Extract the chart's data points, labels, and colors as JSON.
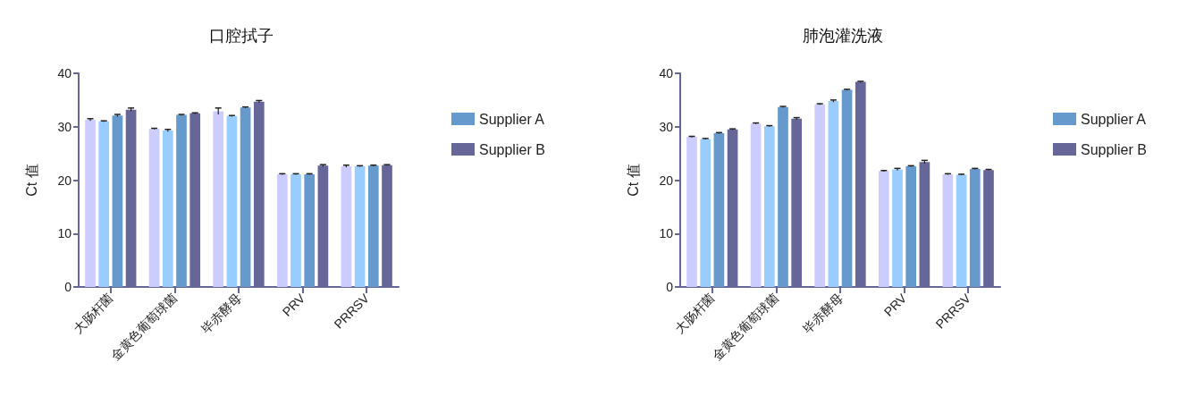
{
  "chart_data": [
    {
      "type": "bar",
      "title": "口腔拭子",
      "ylabel": "Ct 值",
      "categories": [
        "大肠杆菌",
        "金黄色葡萄球菌",
        "毕赤酵母",
        "PRV",
        "PRRSV"
      ],
      "ylim": [
        0,
        40
      ],
      "yticks": [
        0,
        10,
        20,
        30,
        40
      ],
      "grid": false,
      "legend": "right",
      "series": [
        {
          "color": "#ccccff",
          "values": [
            31.3,
            29.6,
            32.9,
            21.1,
            22.6
          ],
          "errors": [
            0.2,
            0.1,
            0.6,
            0.1,
            0.2
          ]
        },
        {
          "color": "#99ccff",
          "values": [
            31.0,
            29.3,
            32.0,
            21.1,
            22.6
          ],
          "errors": [
            0.1,
            0.2,
            0.1,
            0.1,
            0.1
          ]
        },
        {
          "name": "Supplier A",
          "color": "#6699cc",
          "values": [
            32.1,
            32.2,
            33.6,
            21.1,
            22.7
          ],
          "errors": [
            0.2,
            0.1,
            0.1,
            0.1,
            0.1
          ]
        },
        {
          "name": "Supplier B",
          "color": "#666699",
          "values": [
            33.2,
            32.5,
            34.7,
            22.7,
            22.8
          ],
          "errors": [
            0.3,
            0.1,
            0.2,
            0.2,
            0.1
          ]
        }
      ]
    },
    {
      "type": "bar",
      "title": "肺泡灌洗液",
      "ylabel": "Ct 值",
      "categories": [
        "大肠杆菌",
        "金黄色葡萄球菌",
        "毕赤酵母",
        "PRV",
        "PRRSV"
      ],
      "ylim": [
        0,
        40
      ],
      "yticks": [
        0,
        10,
        20,
        30,
        40
      ],
      "grid": false,
      "legend": "right",
      "series": [
        {
          "color": "#ccccff",
          "values": [
            28.1,
            30.6,
            34.2,
            21.7,
            21.1
          ],
          "errors": [
            0.1,
            0.1,
            0.1,
            0.1,
            0.1
          ]
        },
        {
          "color": "#99ccff",
          "values": [
            27.7,
            30.1,
            34.8,
            22.0,
            21.0
          ],
          "errors": [
            0.1,
            0.1,
            0.2,
            0.2,
            0.1
          ]
        },
        {
          "name": "Supplier A",
          "color": "#6699cc",
          "values": [
            28.8,
            33.7,
            36.9,
            22.6,
            22.1
          ],
          "errors": [
            0.1,
            0.1,
            0.1,
            0.1,
            0.1
          ]
        },
        {
          "name": "Supplier B",
          "color": "#666699",
          "values": [
            29.5,
            31.5,
            38.4,
            23.4,
            21.9
          ],
          "errors": [
            0.1,
            0.2,
            0.1,
            0.3,
            0.1
          ]
        }
      ]
    }
  ]
}
